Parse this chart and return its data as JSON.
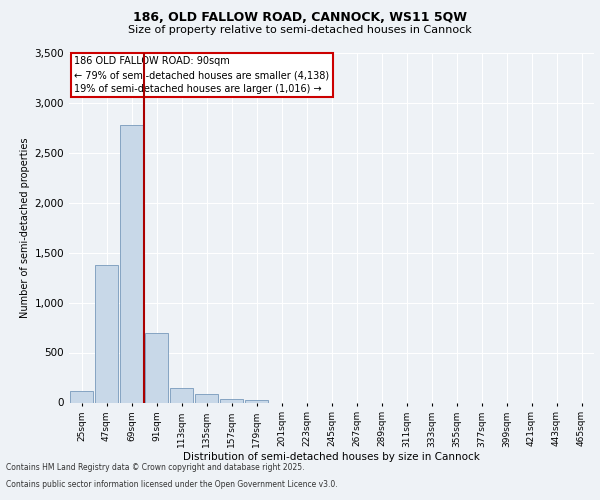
{
  "title1": "186, OLD FALLOW ROAD, CANNOCK, WS11 5QW",
  "title2": "Size of property relative to semi-detached houses in Cannock",
  "xlabel": "Distribution of semi-detached houses by size in Cannock",
  "ylabel": "Number of semi-detached properties",
  "footer1": "Contains HM Land Registry data © Crown copyright and database right 2025.",
  "footer2": "Contains public sector information licensed under the Open Government Licence v3.0.",
  "bin_labels": [
    "25sqm",
    "47sqm",
    "69sqm",
    "91sqm",
    "113sqm",
    "135sqm",
    "157sqm",
    "179sqm",
    "201sqm",
    "223sqm",
    "245sqm",
    "267sqm",
    "289sqm",
    "311sqm",
    "333sqm",
    "355sqm",
    "377sqm",
    "399sqm",
    "421sqm",
    "443sqm",
    "465sqm"
  ],
  "bar_values": [
    120,
    1380,
    2780,
    700,
    150,
    90,
    40,
    30,
    0,
    0,
    0,
    0,
    0,
    0,
    0,
    0,
    0,
    0,
    0,
    0,
    0
  ],
  "bar_color": "#c8d8e8",
  "bar_edge_color": "#7799bb",
  "vline_color": "#aa0000",
  "annotation_title": "186 OLD FALLOW ROAD: 90sqm",
  "annotation_line1": "← 79% of semi-detached houses are smaller (4,138)",
  "annotation_line2": "19% of semi-detached houses are larger (1,016) →",
  "annotation_box_color": "#cc0000",
  "ylim": [
    0,
    3500
  ],
  "yticks": [
    0,
    500,
    1000,
    1500,
    2000,
    2500,
    3000,
    3500
  ],
  "bg_color": "#eef2f6",
  "plot_bg_color": "#eef2f6",
  "grid_color": "#ffffff"
}
